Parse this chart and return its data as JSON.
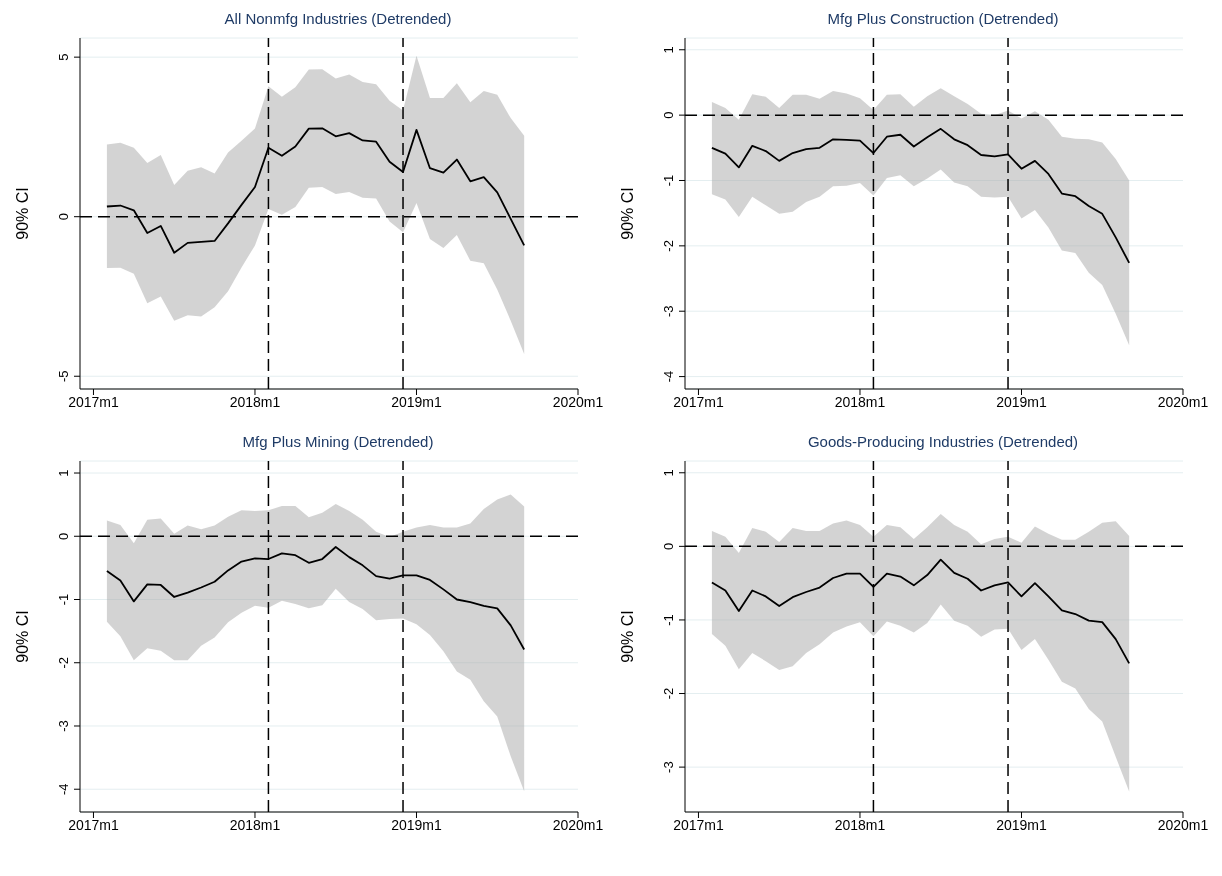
{
  "chart_data": [
    {
      "type": "line",
      "title": "All Nonmfg Industries (Detrended)",
      "ylabel": "90% CI",
      "grid": "y",
      "x": [
        "2017-02",
        "2017-03",
        "2017-04",
        "2017-05",
        "2017-06",
        "2017-07",
        "2017-08",
        "2017-09",
        "2017-10",
        "2017-11",
        "2017-12",
        "2018-01",
        "2018-02",
        "2018-03",
        "2018-04",
        "2018-05",
        "2018-06",
        "2018-07",
        "2018-08",
        "2018-09",
        "2018-10",
        "2018-11",
        "2018-12",
        "2019-01",
        "2019-02",
        "2019-03",
        "2019-04",
        "2019-05",
        "2019-06",
        "2019-07",
        "2019-08",
        "2019-09"
      ],
      "series": [
        {
          "color": "#000000",
          "values": [
            0.32,
            0.35,
            0.2,
            -0.51,
            -0.29,
            -1.13,
            -0.82,
            -0.79,
            -0.76,
            -0.21,
            0.37,
            0.93,
            2.16,
            1.91,
            2.2,
            2.76,
            2.77,
            2.52,
            2.62,
            2.39,
            2.35,
            1.72,
            1.4,
            2.72,
            1.52,
            1.38,
            1.79,
            1.11,
            1.24,
            0.76,
            -0.07,
            -0.9
          ],
          "lower": [
            -1.61,
            -1.6,
            -1.79,
            -2.71,
            -2.5,
            -3.26,
            -3.09,
            -3.13,
            -2.84,
            -2.34,
            -1.59,
            -0.9,
            0.24,
            0.06,
            0.3,
            0.91,
            0.93,
            0.71,
            0.77,
            0.59,
            0.57,
            -0.15,
            -0.49,
            0.43,
            -0.7,
            -0.98,
            -0.57,
            -1.38,
            -1.46,
            -2.28,
            -3.26,
            -4.3
          ],
          "upper": [
            2.26,
            2.32,
            2.16,
            1.68,
            1.93,
            0.99,
            1.44,
            1.55,
            1.35,
            2.01,
            2.38,
            2.76,
            4.09,
            3.76,
            4.06,
            4.61,
            4.62,
            4.33,
            4.46,
            4.22,
            4.15,
            3.63,
            3.33,
            5.04,
            3.72,
            3.72,
            4.18,
            3.59,
            3.94,
            3.82,
            3.09,
            2.54
          ]
        }
      ],
      "xlim": [
        "2016-12",
        "2020-01"
      ],
      "xticks": [
        {
          "value": "2017-01",
          "label": "2017m1"
        },
        {
          "value": "2018-01",
          "label": "2018m1"
        },
        {
          "value": "2019-01",
          "label": "2019m1"
        },
        {
          "value": "2020-01",
          "label": "2020m1"
        }
      ],
      "ylim": [
        -5.4,
        5.6
      ],
      "yticks": [
        -5,
        0,
        5
      ],
      "ref_lines": [
        {
          "axis": "y",
          "value": 0,
          "color": "#000000",
          "line_style": "dashed"
        },
        {
          "axis": "x",
          "value": "2018-02",
          "color": "#000000",
          "line_style": "dashed"
        },
        {
          "axis": "x",
          "value": "2018-12",
          "color": "#000000",
          "line_style": "dashed"
        }
      ]
    },
    {
      "type": "line",
      "title": "Mfg Plus Construction (Detrended)",
      "ylabel": "90% CI",
      "grid": "y",
      "x": [
        "2017-02",
        "2017-03",
        "2017-04",
        "2017-05",
        "2017-06",
        "2017-07",
        "2017-08",
        "2017-09",
        "2017-10",
        "2017-11",
        "2017-12",
        "2018-01",
        "2018-02",
        "2018-03",
        "2018-04",
        "2018-05",
        "2018-06",
        "2018-07",
        "2018-08",
        "2018-09",
        "2018-10",
        "2018-11",
        "2018-12",
        "2019-01",
        "2019-02",
        "2019-03",
        "2019-04",
        "2019-05",
        "2019-06",
        "2019-07",
        "2019-08",
        "2019-09"
      ],
      "series": [
        {
          "color": "#000000",
          "values": [
            -0.5,
            -0.59,
            -0.8,
            -0.47,
            -0.55,
            -0.7,
            -0.58,
            -0.52,
            -0.5,
            -0.37,
            -0.38,
            -0.39,
            -0.58,
            -0.33,
            -0.3,
            -0.48,
            -0.34,
            -0.21,
            -0.37,
            -0.46,
            -0.61,
            -0.63,
            -0.6,
            -0.82,
            -0.7,
            -0.9,
            -1.2,
            -1.24,
            -1.39,
            -1.51,
            -1.87,
            -2.26
          ],
          "lower": [
            -1.21,
            -1.29,
            -1.56,
            -1.25,
            -1.38,
            -1.51,
            -1.48,
            -1.33,
            -1.25,
            -1.09,
            -1.08,
            -1.04,
            -1.23,
            -0.96,
            -0.92,
            -1.09,
            -0.97,
            -0.83,
            -1.03,
            -1.09,
            -1.25,
            -1.26,
            -1.25,
            -1.58,
            -1.45,
            -1.72,
            -2.07,
            -2.11,
            -2.41,
            -2.6,
            -3.04,
            -3.52
          ],
          "upper": [
            0.2,
            0.11,
            -0.07,
            0.32,
            0.28,
            0.11,
            0.31,
            0.31,
            0.25,
            0.37,
            0.33,
            0.26,
            0.08,
            0.31,
            0.32,
            0.13,
            0.29,
            0.41,
            0.29,
            0.17,
            0.02,
            0,
            0.07,
            -0.05,
            0.06,
            -0.07,
            -0.33,
            -0.36,
            -0.37,
            -0.42,
            -0.67,
            -1.0
          ]
        }
      ],
      "xlim": [
        "2016-12",
        "2020-01"
      ],
      "xticks": [
        {
          "value": "2017-01",
          "label": "2017m1"
        },
        {
          "value": "2018-01",
          "label": "2018m1"
        },
        {
          "value": "2019-01",
          "label": "2019m1"
        },
        {
          "value": "2020-01",
          "label": "2020m1"
        }
      ],
      "ylim": [
        -4.19,
        1.18
      ],
      "yticks": [
        -4,
        -3,
        -2,
        -1,
        0,
        1
      ],
      "ref_lines": [
        {
          "axis": "y",
          "value": 0,
          "color": "#000000",
          "line_style": "dashed"
        },
        {
          "axis": "x",
          "value": "2018-02",
          "color": "#000000",
          "line_style": "dashed"
        },
        {
          "axis": "x",
          "value": "2018-12",
          "color": "#000000",
          "line_style": "dashed"
        }
      ]
    },
    {
      "type": "line",
      "title": "Mfg Plus Mining (Detrended)",
      "ylabel": "90% CI",
      "grid": "y",
      "x": [
        "2017-02",
        "2017-03",
        "2017-04",
        "2017-05",
        "2017-06",
        "2017-07",
        "2017-08",
        "2017-09",
        "2017-10",
        "2017-11",
        "2017-12",
        "2018-01",
        "2018-02",
        "2018-03",
        "2018-04",
        "2018-05",
        "2018-06",
        "2018-07",
        "2018-08",
        "2018-09",
        "2018-10",
        "2018-11",
        "2018-12",
        "2019-01",
        "2019-02",
        "2019-03",
        "2019-04",
        "2019-05",
        "2019-06",
        "2019-07",
        "2019-08",
        "2019-09"
      ],
      "series": [
        {
          "color": "#000000",
          "values": [
            -0.55,
            -0.7,
            -1.03,
            -0.76,
            -0.77,
            -0.96,
            -0.89,
            -0.81,
            -0.72,
            -0.54,
            -0.4,
            -0.35,
            -0.36,
            -0.27,
            -0.3,
            -0.42,
            -0.36,
            -0.17,
            -0.33,
            -0.46,
            -0.63,
            -0.67,
            -0.62,
            -0.62,
            -0.69,
            -0.84,
            -1.0,
            -1.04,
            -1.1,
            -1.14,
            -1.41,
            -1.79
          ],
          "lower": [
            -1.35,
            -1.58,
            -1.96,
            -1.77,
            -1.81,
            -1.96,
            -1.96,
            -1.73,
            -1.6,
            -1.36,
            -1.21,
            -1.1,
            -1.13,
            -1.02,
            -1.07,
            -1.14,
            -1.09,
            -0.83,
            -1.04,
            -1.15,
            -1.33,
            -1.31,
            -1.3,
            -1.39,
            -1.56,
            -1.82,
            -2.14,
            -2.27,
            -2.61,
            -2.85,
            -3.48,
            -4.03
          ],
          "upper": [
            0.25,
            0.18,
            -0.11,
            0.26,
            0.28,
            0.04,
            0.17,
            0.11,
            0.17,
            0.31,
            0.41,
            0.4,
            0.41,
            0.48,
            0.48,
            0.3,
            0.37,
            0.51,
            0.4,
            0.26,
            0.07,
            -0.01,
            0.07,
            0.14,
            0.18,
            0.14,
            0.14,
            0.2,
            0.43,
            0.58,
            0.66,
            0.47
          ]
        }
      ],
      "xlim": [
        "2016-12",
        "2020-01"
      ],
      "xticks": [
        {
          "value": "2017-01",
          "label": "2017m1"
        },
        {
          "value": "2018-01",
          "label": "2018m1"
        },
        {
          "value": "2019-01",
          "label": "2019m1"
        },
        {
          "value": "2020-01",
          "label": "2020m1"
        }
      ],
      "ylim": [
        -4.36,
        1.19
      ],
      "yticks": [
        -4,
        -3,
        -2,
        -1,
        0,
        1
      ],
      "ref_lines": [
        {
          "axis": "y",
          "value": 0,
          "color": "#000000",
          "line_style": "dashed"
        },
        {
          "axis": "x",
          "value": "2018-02",
          "color": "#000000",
          "line_style": "dashed"
        },
        {
          "axis": "x",
          "value": "2018-12",
          "color": "#000000",
          "line_style": "dashed"
        }
      ]
    },
    {
      "type": "line",
      "title": "Goods-Producing Industries (Detrended)",
      "ylabel": "90% CI",
      "grid": "y",
      "x": [
        "2017-02",
        "2017-03",
        "2017-04",
        "2017-05",
        "2017-06",
        "2017-07",
        "2017-08",
        "2017-09",
        "2017-10",
        "2017-11",
        "2017-12",
        "2018-01",
        "2018-02",
        "2018-03",
        "2018-04",
        "2018-05",
        "2018-06",
        "2018-07",
        "2018-08",
        "2018-09",
        "2018-10",
        "2018-11",
        "2018-12",
        "2019-01",
        "2019-02",
        "2019-03",
        "2019-04",
        "2019-05",
        "2019-06",
        "2019-07",
        "2019-08",
        "2019-09"
      ],
      "series": [
        {
          "color": "#000000",
          "values": [
            -0.49,
            -0.6,
            -0.88,
            -0.6,
            -0.68,
            -0.81,
            -0.69,
            -0.62,
            -0.56,
            -0.43,
            -0.37,
            -0.37,
            -0.55,
            -0.37,
            -0.41,
            -0.53,
            -0.39,
            -0.18,
            -0.36,
            -0.44,
            -0.6,
            -0.53,
            -0.49,
            -0.68,
            -0.5,
            -0.68,
            -0.87,
            -0.92,
            -1.01,
            -1.03,
            -1.26,
            -1.59
          ],
          "lower": [
            -1.19,
            -1.35,
            -1.67,
            -1.45,
            -1.56,
            -1.68,
            -1.63,
            -1.45,
            -1.33,
            -1.17,
            -1.09,
            -1.03,
            -1.22,
            -1.02,
            -1.08,
            -1.17,
            -1.04,
            -0.79,
            -1.01,
            -1.08,
            -1.23,
            -1.13,
            -1.12,
            -1.41,
            -1.26,
            -1.54,
            -1.84,
            -1.93,
            -2.21,
            -2.38,
            -2.86,
            -3.33
          ],
          "upper": [
            0.21,
            0.13,
            -0.09,
            0.25,
            0.2,
            0.06,
            0.25,
            0.21,
            0.21,
            0.31,
            0.35,
            0.29,
            0.13,
            0.29,
            0.26,
            0.1,
            0.26,
            0.44,
            0.29,
            0.2,
            0.03,
            0.1,
            0.13,
            0.05,
            0.27,
            0.17,
            0.09,
            0.09,
            0.2,
            0.32,
            0.34,
            0.14
          ]
        }
      ],
      "xlim": [
        "2016-12",
        "2020-01"
      ],
      "xticks": [
        {
          "value": "2017-01",
          "label": "2017m1"
        },
        {
          "value": "2018-01",
          "label": "2018m1"
        },
        {
          "value": "2019-01",
          "label": "2019m1"
        },
        {
          "value": "2020-01",
          "label": "2020m1"
        }
      ],
      "ylim": [
        -3.61,
        1.16
      ],
      "yticks": [
        -3,
        -2,
        -1,
        0,
        1
      ],
      "ref_lines": [
        {
          "axis": "y",
          "value": 0,
          "color": "#000000",
          "line_style": "dashed"
        },
        {
          "axis": "x",
          "value": "2018-02",
          "color": "#000000",
          "line_style": "dashed"
        },
        {
          "axis": "x",
          "value": "2018-12",
          "color": "#000000",
          "line_style": "dashed"
        }
      ]
    }
  ]
}
